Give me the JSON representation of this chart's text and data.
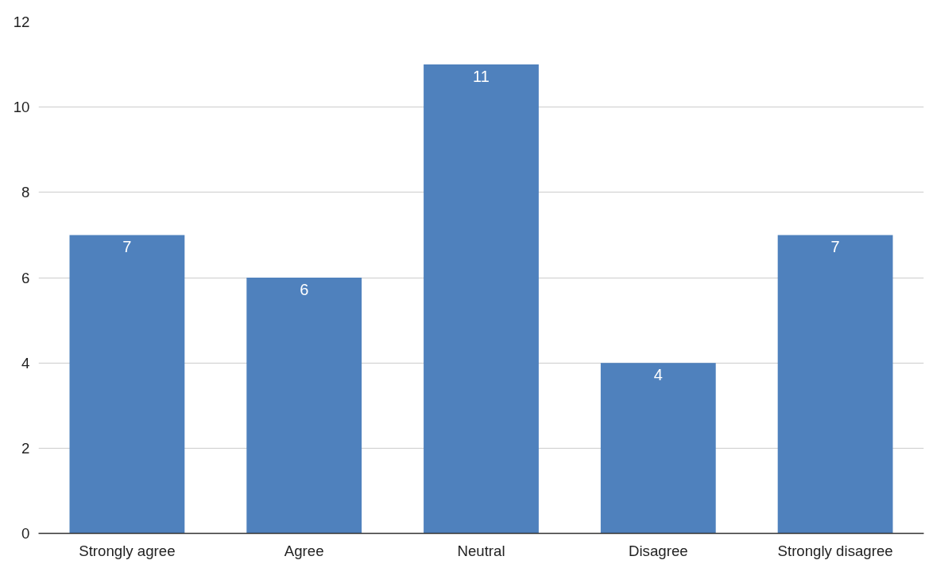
{
  "chart_data": {
    "type": "bar",
    "categories": [
      "Strongly agree",
      "Agree",
      "Neutral",
      "Disagree",
      "Strongly disagree"
    ],
    "values": [
      7,
      6,
      11,
      4,
      7
    ],
    "color": "#4f81bd",
    "ylim": [
      0,
      12
    ],
    "yticks": [
      0,
      2,
      4,
      6,
      8,
      10,
      12
    ],
    "grid": "y",
    "data_labels": true
  }
}
